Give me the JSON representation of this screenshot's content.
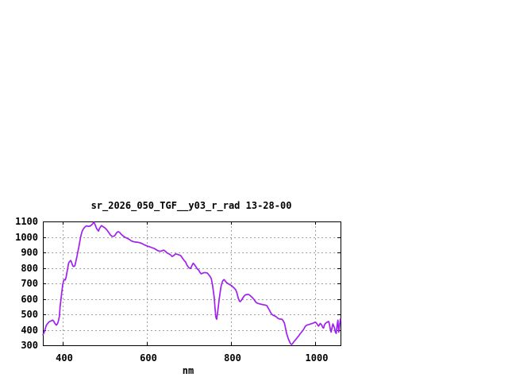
{
  "window": {
    "background": "#ffffff"
  },
  "chart_data": {
    "type": "line",
    "title": "sr_2026_050_TGF__y03_r_rad 13-28-00",
    "xlabel": "nm",
    "ylabel": "",
    "xlim": [
      352.8,
      1060.2
    ],
    "ylim": [
      300,
      1100
    ],
    "x_ticks": [
      400,
      600,
      800,
      1000
    ],
    "y_ticks": [
      300,
      400,
      500,
      600,
      700,
      800,
      900,
      1000,
      1100
    ],
    "grid": true,
    "legend": false,
    "colors": {
      "line": "#a020f0",
      "grid": "#a0a0a0",
      "axis": "#000000",
      "text": "#000000",
      "background": "#ffffff"
    },
    "series": [
      {
        "points": [
          [
            353,
            368
          ],
          [
            355,
            378
          ],
          [
            357,
            392
          ],
          [
            359,
            412
          ],
          [
            361,
            428
          ],
          [
            364,
            440
          ],
          [
            367,
            450
          ],
          [
            370,
            455
          ],
          [
            373,
            458
          ],
          [
            376,
            463
          ],
          [
            378,
            458
          ],
          [
            380,
            448
          ],
          [
            383,
            436
          ],
          [
            385,
            430
          ],
          [
            388,
            442
          ],
          [
            390,
            460
          ],
          [
            392,
            486
          ],
          [
            394,
            554
          ],
          [
            396,
            600
          ],
          [
            398,
            650
          ],
          [
            400,
            690
          ],
          [
            402,
            717
          ],
          [
            404,
            725
          ],
          [
            406,
            722
          ],
          [
            408,
            740
          ],
          [
            410,
            770
          ],
          [
            412,
            800
          ],
          [
            414,
            830
          ],
          [
            416,
            840
          ],
          [
            419,
            848
          ],
          [
            421,
            835
          ],
          [
            423,
            820
          ],
          [
            425,
            809
          ],
          [
            427,
            810
          ],
          [
            429,
            815
          ],
          [
            431,
            840
          ],
          [
            434,
            875
          ],
          [
            436,
            905
          ],
          [
            438,
            932
          ],
          [
            440,
            960
          ],
          [
            442,
            992
          ],
          [
            444,
            1015
          ],
          [
            446,
            1035
          ],
          [
            448,
            1047
          ],
          [
            450,
            1055
          ],
          [
            452,
            1062
          ],
          [
            455,
            1069
          ],
          [
            457,
            1072
          ],
          [
            459,
            1070
          ],
          [
            461,
            1068
          ],
          [
            463,
            1070
          ],
          [
            465,
            1070
          ],
          [
            467,
            1074
          ],
          [
            469,
            1078
          ],
          [
            471,
            1085
          ],
          [
            474,
            1095
          ],
          [
            476,
            1085
          ],
          [
            478,
            1072
          ],
          [
            480,
            1058
          ],
          [
            482,
            1048
          ],
          [
            485,
            1038
          ],
          [
            487,
            1052
          ],
          [
            489,
            1062
          ],
          [
            492,
            1073
          ],
          [
            494,
            1070
          ],
          [
            496,
            1066
          ],
          [
            499,
            1061
          ],
          [
            502,
            1054
          ],
          [
            504,
            1048
          ],
          [
            507,
            1038
          ],
          [
            510,
            1026
          ],
          [
            513,
            1014
          ],
          [
            517,
            1004
          ],
          [
            520,
            1004
          ],
          [
            523,
            1006
          ],
          [
            526,
            1018
          ],
          [
            529,
            1030
          ],
          [
            532,
            1034
          ],
          [
            535,
            1030
          ],
          [
            538,
            1020
          ],
          [
            541,
            1012
          ],
          [
            544,
            1005
          ],
          [
            548,
            998
          ],
          [
            553,
            992
          ],
          [
            558,
            984
          ],
          [
            563,
            975
          ],
          [
            568,
            970
          ],
          [
            572,
            967
          ],
          [
            577,
            966
          ],
          [
            582,
            963
          ],
          [
            587,
            959
          ],
          [
            592,
            952
          ],
          [
            597,
            945
          ],
          [
            602,
            940
          ],
          [
            607,
            936
          ],
          [
            612,
            931
          ],
          [
            617,
            926
          ],
          [
            622,
            918
          ],
          [
            627,
            910
          ],
          [
            632,
            907
          ],
          [
            636,
            911
          ],
          [
            640,
            915
          ],
          [
            644,
            907
          ],
          [
            648,
            897
          ],
          [
            652,
            891
          ],
          [
            656,
            885
          ],
          [
            660,
            874
          ],
          [
            664,
            880
          ],
          [
            668,
            890
          ],
          [
            672,
            888
          ],
          [
            676,
            884
          ],
          [
            680,
            880
          ],
          [
            684,
            865
          ],
          [
            688,
            850
          ],
          [
            692,
            838
          ],
          [
            696,
            815
          ],
          [
            700,
            800
          ],
          [
            704,
            796
          ],
          [
            707,
            815
          ],
          [
            710,
            830
          ],
          [
            713,
            822
          ],
          [
            717,
            805
          ],
          [
            720,
            792
          ],
          [
            723,
            787
          ],
          [
            726,
            772
          ],
          [
            729,
            762
          ],
          [
            732,
            765
          ],
          [
            735,
            768
          ],
          [
            738,
            770
          ],
          [
            741,
            768
          ],
          [
            744,
            766
          ],
          [
            747,
            756
          ],
          [
            750,
            745
          ],
          [
            753,
            730
          ],
          [
            756,
            690
          ],
          [
            758,
            650
          ],
          [
            760,
            608
          ],
          [
            762,
            540
          ],
          [
            764,
            480
          ],
          [
            766,
            468
          ],
          [
            768,
            510
          ],
          [
            770,
            556
          ],
          [
            772,
            600
          ],
          [
            774,
            640
          ],
          [
            776,
            676
          ],
          [
            778,
            698
          ],
          [
            780,
            715
          ],
          [
            782,
            722
          ],
          [
            784,
            724
          ],
          [
            786,
            716
          ],
          [
            788,
            710
          ],
          [
            790,
            703
          ],
          [
            793,
            698
          ],
          [
            796,
            694
          ],
          [
            799,
            688
          ],
          [
            802,
            684
          ],
          [
            805,
            676
          ],
          [
            808,
            668
          ],
          [
            811,
            659
          ],
          [
            814,
            638
          ],
          [
            817,
            605
          ],
          [
            820,
            585
          ],
          [
            822,
            582
          ],
          [
            825,
            592
          ],
          [
            828,
            605
          ],
          [
            831,
            618
          ],
          [
            834,
            625
          ],
          [
            838,
            628
          ],
          [
            842,
            628
          ],
          [
            846,
            620
          ],
          [
            850,
            610
          ],
          [
            854,
            598
          ],
          [
            858,
            582
          ],
          [
            861,
            574
          ],
          [
            865,
            570
          ],
          [
            869,
            567
          ],
          [
            873,
            564
          ],
          [
            877,
            562
          ],
          [
            881,
            560
          ],
          [
            885,
            557
          ],
          [
            888,
            542
          ],
          [
            891,
            528
          ],
          [
            894,
            512
          ],
          [
            897,
            500
          ],
          [
            900,
            494
          ],
          [
            903,
            490
          ],
          [
            906,
            487
          ],
          [
            909,
            480
          ],
          [
            912,
            474
          ],
          [
            915,
            470
          ],
          [
            918,
            469
          ],
          [
            921,
            468
          ],
          [
            924,
            458
          ],
          [
            927,
            442
          ],
          [
            930,
            403
          ],
          [
            932,
            378
          ],
          [
            934,
            360
          ],
          [
            936,
            342
          ],
          [
            938,
            330
          ],
          [
            940,
            318
          ],
          [
            942,
            308
          ],
          [
            944,
            305
          ],
          [
            946,
            310
          ],
          [
            948,
            318
          ],
          [
            951,
            328
          ],
          [
            954,
            338
          ],
          [
            957,
            348
          ],
          [
            960,
            358
          ],
          [
            963,
            370
          ],
          [
            966,
            380
          ],
          [
            969,
            390
          ],
          [
            972,
            400
          ],
          [
            975,
            415
          ],
          [
            977,
            424
          ],
          [
            980,
            429
          ],
          [
            982,
            432
          ],
          [
            985,
            434
          ],
          [
            987,
            436
          ],
          [
            990,
            439
          ],
          [
            993,
            441
          ],
          [
            996,
            444
          ],
          [
            1000,
            449
          ],
          [
            1002,
            446
          ],
          [
            1004,
            440
          ],
          [
            1006,
            430
          ],
          [
            1008,
            424
          ],
          [
            1010,
            432
          ],
          [
            1012,
            441
          ],
          [
            1014,
            436
          ],
          [
            1016,
            428
          ],
          [
            1018,
            415
          ],
          [
            1020,
            412
          ],
          [
            1022,
            430
          ],
          [
            1024,
            440
          ],
          [
            1026,
            445
          ],
          [
            1028,
            448
          ],
          [
            1030,
            452
          ],
          [
            1032,
            454
          ],
          [
            1034,
            434
          ],
          [
            1036,
            402
          ],
          [
            1038,
            385
          ],
          [
            1040,
            415
          ],
          [
            1042,
            438
          ],
          [
            1044,
            425
          ],
          [
            1046,
            410
          ],
          [
            1048,
            385
          ],
          [
            1050,
            377
          ],
          [
            1052,
            430
          ],
          [
            1054,
            462
          ],
          [
            1055,
            420
          ],
          [
            1056,
            385
          ],
          [
            1057,
            405
          ],
          [
            1058,
            430
          ],
          [
            1059,
            450
          ],
          [
            1060,
            470
          ]
        ]
      }
    ]
  }
}
